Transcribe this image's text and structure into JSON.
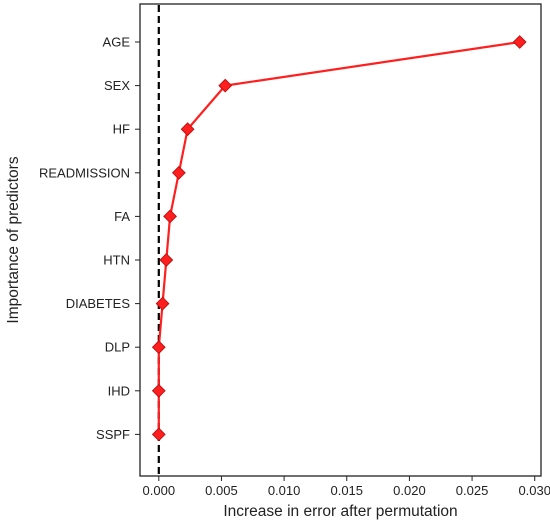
{
  "chart_data": {
    "type": "line",
    "title": "",
    "xlabel": "Increase in error after permutation",
    "ylabel": "Importance of predictors",
    "xlim": [
      -0.0015,
      0.0305
    ],
    "xticks": [
      0.0,
      0.005,
      0.01,
      0.015,
      0.02,
      0.025,
      0.03
    ],
    "xtick_labels": [
      "0.000",
      "0.005",
      "0.010",
      "0.015",
      "0.020",
      "0.025",
      "0.030"
    ],
    "categories": [
      "AGE",
      "SEX",
      "HF",
      "READMISSION",
      "FA",
      "HTN",
      "DIABETES",
      "DLP",
      "IHD",
      "SSPF"
    ],
    "values": [
      0.0288,
      0.0053,
      0.0023,
      0.0016,
      0.0009,
      0.0006,
      0.0003,
      0.0,
      0.0,
      0.0
    ],
    "reference_line": {
      "x": 0.0,
      "style": "dashed",
      "color": "#000000"
    },
    "series_color": "#ff1f1f",
    "marker": "diamond",
    "grid": false,
    "legend": "none"
  }
}
